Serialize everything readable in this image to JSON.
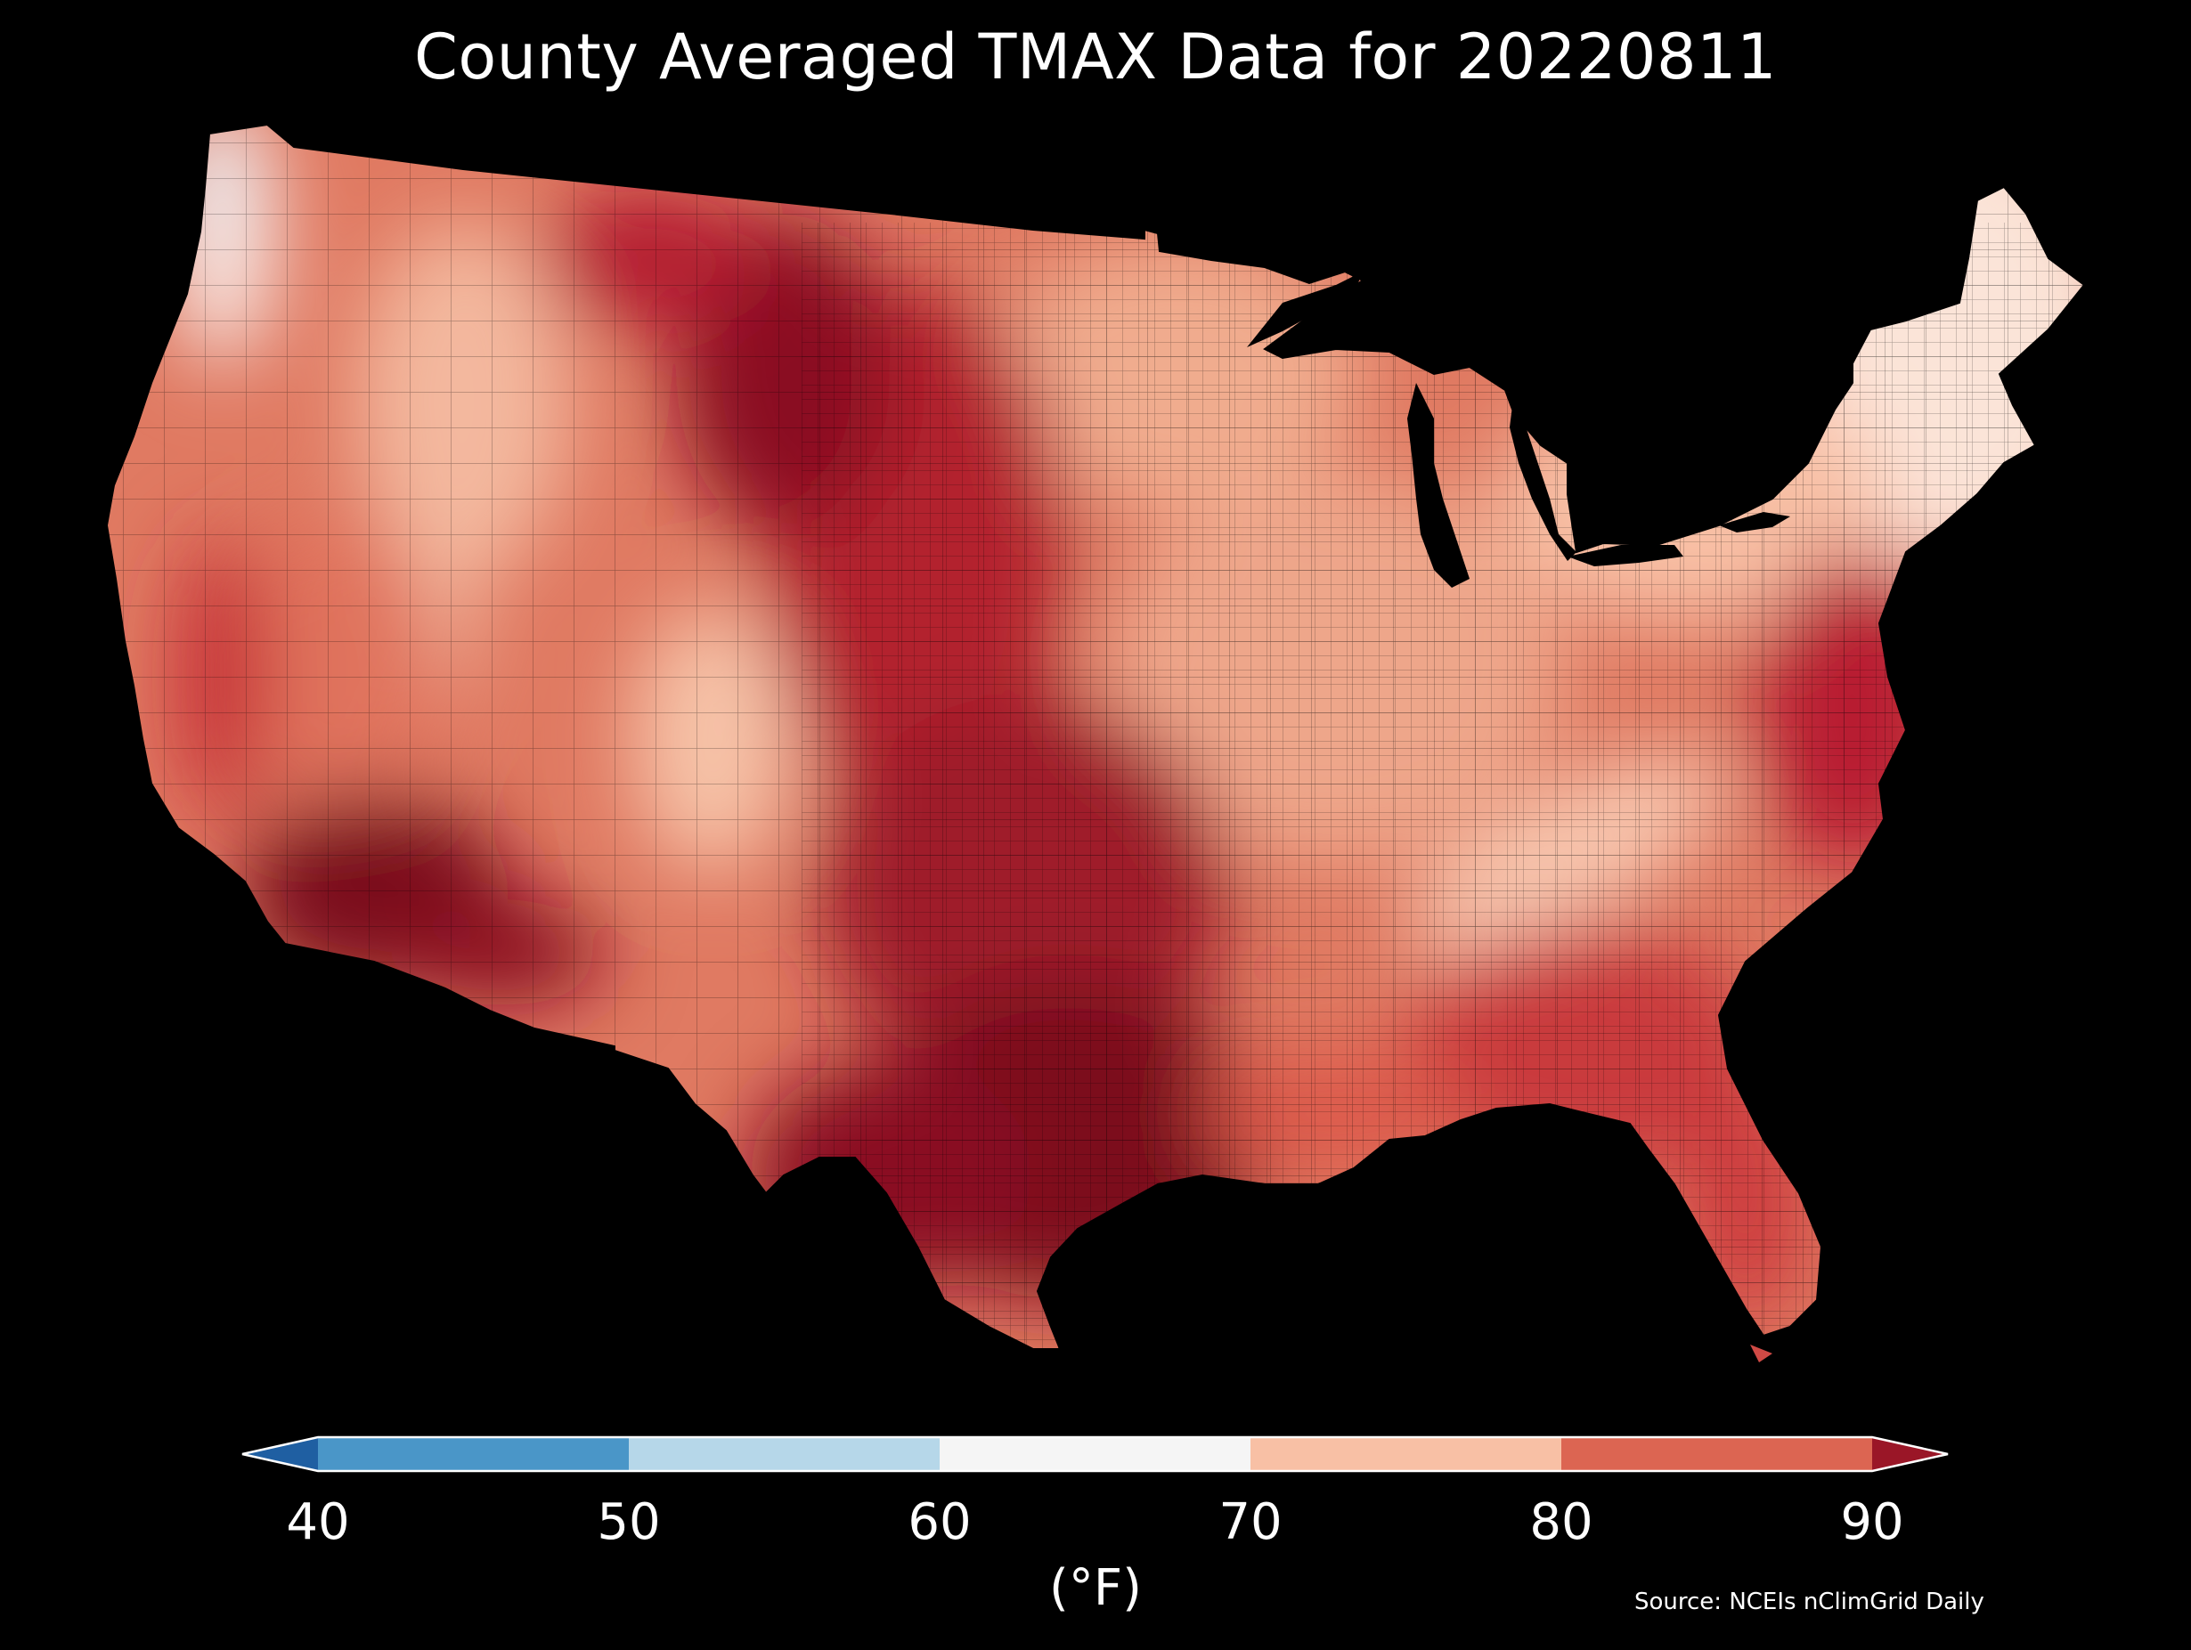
{
  "title": "County Averaged TMAX Data for 20220811",
  "colorbar": {
    "ticks": [
      "40",
      "50",
      "60",
      "70",
      "80",
      "90"
    ],
    "unit": "(°F)",
    "bins": [
      {
        "range": "<40",
        "color": "#1f5fa2"
      },
      {
        "range": "40-50",
        "color": "#4a96c8"
      },
      {
        "range": "50-60",
        "color": "#b6d7e9"
      },
      {
        "range": "60-70",
        "color": "#f5f5f5"
      },
      {
        "range": "70-80",
        "color": "#f8c0a5"
      },
      {
        "range": "80-90",
        "color": "#dc6552"
      },
      {
        "range": ">90",
        "color": "#9a1627"
      }
    ]
  },
  "source": "Source: NCEIs nClimGrid Daily",
  "colors": {
    "background": "#000000",
    "coolest": "#e8f1f8",
    "cool_light": "#fbe4d8",
    "light": "#f8c0a5",
    "medium": "#e27a62",
    "warm": "#d4453f",
    "hot": "#b41e30",
    "hottest": "#7a0b1f"
  }
}
